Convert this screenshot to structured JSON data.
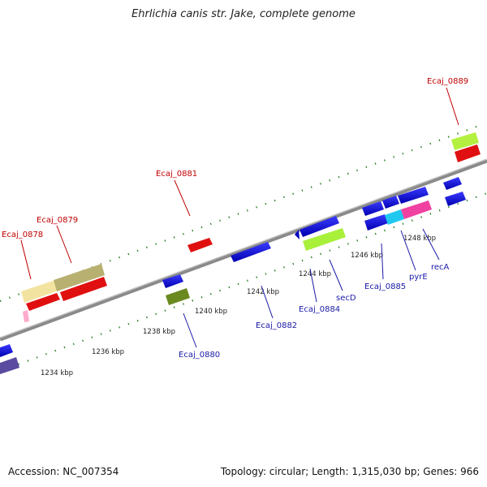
{
  "title": "Ehrlichia canis str. Jake, complete genome",
  "accession": "Accession: NC_007354",
  "summary": "Topology: circular; Length: 1,315,030 bp; Genes: 966",
  "colors": {
    "backbone": "#8a8a8a",
    "ticks": "#1e7a1e",
    "label_top": "#c00000",
    "label_bottom": "#1a1aa8"
  },
  "tick_labels": [
    "1234 kbp",
    "1236 kbp",
    "1238 kbp",
    "1240 kbp",
    "1242 kbp",
    "1244 kbp",
    "1246 kbp",
    "1248 kbp"
  ],
  "gene_labels_top": [
    "Ecaj_0878",
    "Ecaj_0879",
    "Ecaj_0881",
    "Ecaj_0889"
  ],
  "gene_labels_bottom": [
    "Ecaj_0880",
    "Ecaj_0882",
    "Ecaj_0884",
    "secD",
    "Ecaj_0885",
    "pyrE",
    "recA"
  ]
}
